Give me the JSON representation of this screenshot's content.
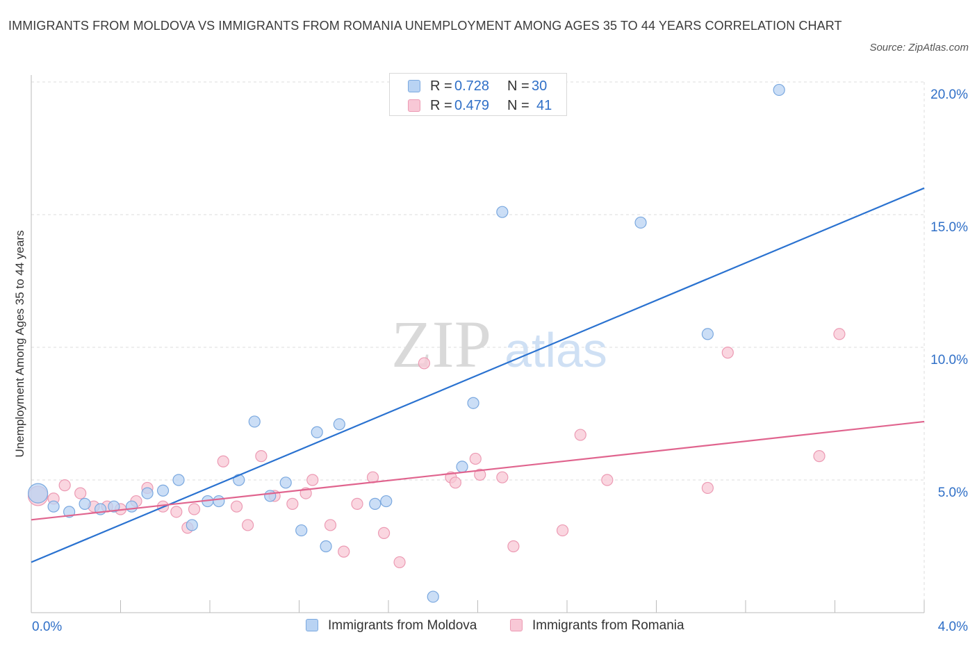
{
  "title": "IMMIGRANTS FROM MOLDOVA VS IMMIGRANTS FROM ROMANIA UNEMPLOYMENT AMONG AGES 35 TO 44 YEARS CORRELATION CHART",
  "source": "Source: ZipAtlas.com",
  "watermark": {
    "zip": "ZIP",
    "atlas": "atlas"
  },
  "legend": {
    "r_label": "R =",
    "n_label": "N =",
    "moldova": {
      "r": "0.728",
      "n": "30"
    },
    "romania": {
      "r": "0.479",
      "n": "41"
    }
  },
  "colors": {
    "moldova_fill": "#b9d3f3",
    "moldova_stroke": "#7aa8df",
    "moldova_line": "#2a72d0",
    "romania_fill": "#f8c8d6",
    "romania_stroke": "#ec9ab3",
    "romania_line": "#e0648e",
    "tick_label": "#2f6fc7",
    "grid": "#dddddd"
  },
  "chart_data": {
    "type": "scatter",
    "title": "IMMIGRANTS FROM MOLDOVA VS IMMIGRANTS FROM ROMANIA UNEMPLOYMENT AMONG AGES 35 TO 44 YEARS CORRELATION CHART",
    "xlabel": "",
    "ylabel": "Unemployment Among Ages 35 to 44 years",
    "xlim": [
      0,
      4.0
    ],
    "ylim": [
      0,
      20.0
    ],
    "x_tick_labels": [
      "0.0%",
      "4.0%"
    ],
    "y_ticks": [
      5.0,
      10.0,
      15.0,
      20.0
    ],
    "y_tick_labels": [
      "5.0%",
      "10.0%",
      "15.0%",
      "20.0%"
    ],
    "grid": true,
    "legend_position": "top-center",
    "series": [
      {
        "name": "Immigrants from Moldova",
        "r": 0.728,
        "n": 30,
        "trend": {
          "x": [
            0,
            4.0
          ],
          "y": [
            1.9,
            16.0
          ]
        },
        "points": [
          {
            "x": 0.03,
            "y": 4.5,
            "big": true
          },
          {
            "x": 0.1,
            "y": 4.0
          },
          {
            "x": 0.17,
            "y": 3.8
          },
          {
            "x": 0.24,
            "y": 4.1
          },
          {
            "x": 0.31,
            "y": 3.9
          },
          {
            "x": 0.37,
            "y": 4.0
          },
          {
            "x": 0.45,
            "y": 4.0
          },
          {
            "x": 0.52,
            "y": 4.5
          },
          {
            "x": 0.59,
            "y": 4.6
          },
          {
            "x": 0.66,
            "y": 5.0
          },
          {
            "x": 0.72,
            "y": 3.3
          },
          {
            "x": 0.79,
            "y": 4.2
          },
          {
            "x": 0.84,
            "y": 4.2
          },
          {
            "x": 0.93,
            "y": 5.0
          },
          {
            "x": 1.0,
            "y": 7.2
          },
          {
            "x": 1.07,
            "y": 4.4
          },
          {
            "x": 1.14,
            "y": 4.9
          },
          {
            "x": 1.21,
            "y": 3.1
          },
          {
            "x": 1.28,
            "y": 6.8
          },
          {
            "x": 1.32,
            "y": 2.5
          },
          {
            "x": 1.38,
            "y": 7.1
          },
          {
            "x": 1.54,
            "y": 4.1
          },
          {
            "x": 1.59,
            "y": 4.2
          },
          {
            "x": 1.8,
            "y": 0.6
          },
          {
            "x": 1.93,
            "y": 5.5
          },
          {
            "x": 1.98,
            "y": 7.9
          },
          {
            "x": 2.11,
            "y": 15.1
          },
          {
            "x": 2.73,
            "y": 14.7
          },
          {
            "x": 3.03,
            "y": 10.5
          },
          {
            "x": 3.35,
            "y": 19.7
          }
        ]
      },
      {
        "name": "Immigrants from Romania",
        "r": 0.479,
        "n": 41,
        "trend": {
          "x": [
            0,
            4.0
          ],
          "y": [
            3.5,
            7.2
          ]
        },
        "points": [
          {
            "x": 0.03,
            "y": 4.4,
            "big": true
          },
          {
            "x": 0.1,
            "y": 4.3
          },
          {
            "x": 0.15,
            "y": 4.8
          },
          {
            "x": 0.22,
            "y": 4.5
          },
          {
            "x": 0.28,
            "y": 4.0
          },
          {
            "x": 0.34,
            "y": 4.0
          },
          {
            "x": 0.4,
            "y": 3.9
          },
          {
            "x": 0.47,
            "y": 4.2
          },
          {
            "x": 0.52,
            "y": 4.7
          },
          {
            "x": 0.59,
            "y": 4.0
          },
          {
            "x": 0.65,
            "y": 3.8
          },
          {
            "x": 0.7,
            "y": 3.2
          },
          {
            "x": 0.73,
            "y": 3.9
          },
          {
            "x": 0.86,
            "y": 5.7
          },
          {
            "x": 0.92,
            "y": 4.0
          },
          {
            "x": 0.97,
            "y": 3.3
          },
          {
            "x": 1.03,
            "y": 5.9
          },
          {
            "x": 1.09,
            "y": 4.4
          },
          {
            "x": 1.17,
            "y": 4.1
          },
          {
            "x": 1.23,
            "y": 4.5
          },
          {
            "x": 1.26,
            "y": 5.0
          },
          {
            "x": 1.34,
            "y": 3.3
          },
          {
            "x": 1.4,
            "y": 2.3
          },
          {
            "x": 1.46,
            "y": 4.1
          },
          {
            "x": 1.53,
            "y": 5.1
          },
          {
            "x": 1.58,
            "y": 3.0
          },
          {
            "x": 1.65,
            "y": 1.9
          },
          {
            "x": 1.76,
            "y": 9.4
          },
          {
            "x": 1.88,
            "y": 5.1
          },
          {
            "x": 1.9,
            "y": 4.9
          },
          {
            "x": 1.99,
            "y": 5.8
          },
          {
            "x": 2.01,
            "y": 5.2
          },
          {
            "x": 2.11,
            "y": 5.1
          },
          {
            "x": 2.16,
            "y": 2.5
          },
          {
            "x": 2.38,
            "y": 3.1
          },
          {
            "x": 2.46,
            "y": 6.7
          },
          {
            "x": 2.58,
            "y": 5.0
          },
          {
            "x": 3.03,
            "y": 4.7
          },
          {
            "x": 3.12,
            "y": 9.8
          },
          {
            "x": 3.53,
            "y": 5.9
          },
          {
            "x": 3.62,
            "y": 10.5
          }
        ]
      }
    ]
  }
}
